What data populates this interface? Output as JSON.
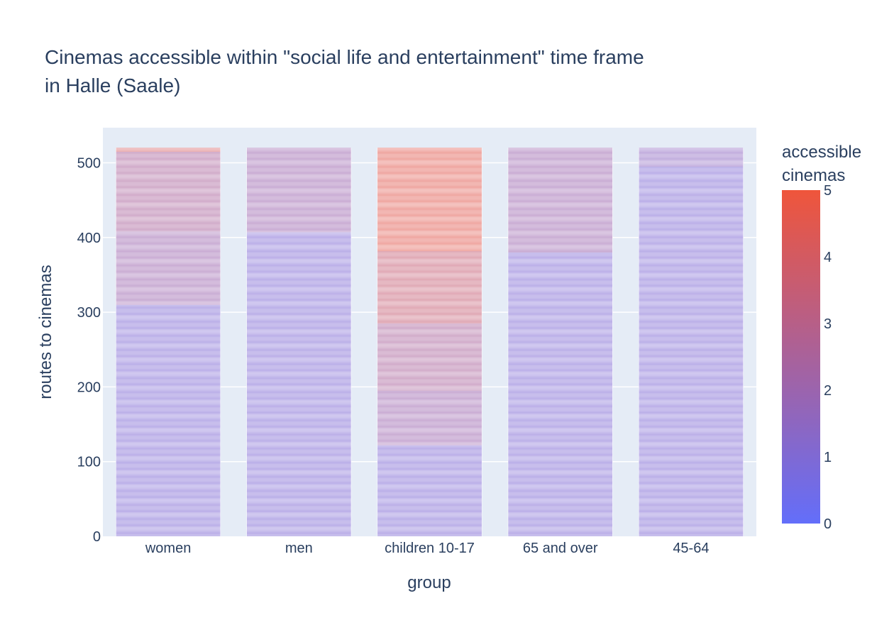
{
  "chart_data": {
    "type": "bar",
    "stacked": true,
    "title": "Cinemas accessible within \"social life and entertainment\" time frame",
    "title_line2": "in Halle (Saale)",
    "xlabel": "group",
    "ylabel": "routes to cinemas",
    "ylim": [
      0,
      547
    ],
    "yticks": [
      0,
      100,
      200,
      300,
      400,
      500
    ],
    "grid": true,
    "categories": [
      "women",
      "men",
      "children 10-17",
      "65 and over",
      "45-64"
    ],
    "total_routes": [
      520,
      520,
      520,
      520,
      520
    ],
    "segments": [
      [
        {
          "from": 0,
          "to": 310,
          "cinemas": 1
        },
        {
          "from": 310,
          "to": 408,
          "cinemas": 2
        },
        {
          "from": 408,
          "to": 515,
          "cinemas": 2.5
        },
        {
          "from": 515,
          "to": 520,
          "cinemas": 4
        }
      ],
      [
        {
          "from": 0,
          "to": 407,
          "cinemas": 1
        },
        {
          "from": 407,
          "to": 520,
          "cinemas": 2
        }
      ],
      [
        {
          "from": 0,
          "to": 122,
          "cinemas": 1
        },
        {
          "from": 122,
          "to": 195,
          "cinemas": 2
        },
        {
          "from": 195,
          "to": 285,
          "cinemas": 2.5
        },
        {
          "from": 285,
          "to": 382,
          "cinemas": 3.5
        },
        {
          "from": 382,
          "to": 520,
          "cinemas": 4.5
        }
      ],
      [
        {
          "from": 0,
          "to": 380,
          "cinemas": 1
        },
        {
          "from": 380,
          "to": 520,
          "cinemas": 2
        }
      ],
      [
        {
          "from": 0,
          "to": 495,
          "cinemas": 1
        },
        {
          "from": 495,
          "to": 520,
          "cinemas": 1.5
        }
      ]
    ],
    "colorbar": {
      "title_line1": "accessible",
      "title_line2": "cinemas",
      "range": [
        0,
        5
      ],
      "ticks": [
        0,
        1,
        2,
        3,
        4,
        5
      ],
      "color_low": "#636efa",
      "color_high": "#ef553b"
    },
    "plot_bgcolor": "#e5ecf6",
    "bar_line_color": "#ffffff",
    "text_color": "#2a3f5f"
  }
}
